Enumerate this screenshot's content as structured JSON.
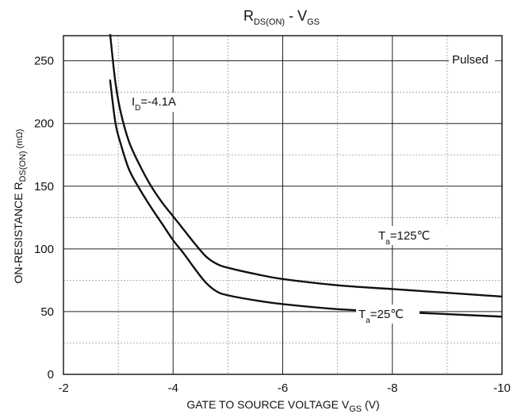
{
  "chart_data": {
    "type": "line",
    "title": {
      "main": "R",
      "main_sub": "DS(ON)",
      "sep": " - V",
      "sep_sub": "GS"
    },
    "xlabel": {
      "text": "GATE TO SOURCE VOLTAGE V",
      "sub": "GS",
      "unit": " (V)"
    },
    "ylabel": {
      "text": "ON-RESISTANCE R",
      "sub": "DS(ON)",
      "unit": " (mΩ)"
    },
    "xlim": [
      -2,
      -10
    ],
    "ylim": [
      0,
      270
    ],
    "x_ticks": [
      -2,
      -4,
      -6,
      -8,
      -10
    ],
    "y_ticks": [
      0,
      50,
      100,
      150,
      200,
      250
    ],
    "grid": true,
    "annotations": {
      "pulsed": "Pulsed",
      "id": {
        "main": "I",
        "sub": "D",
        "rest": "=-4.1A"
      },
      "t125": {
        "main": "T",
        "sub": "a",
        "rest": "=125℃"
      },
      "t25": {
        "main": "T",
        "sub": "a",
        "rest": "=25℃"
      }
    },
    "series": [
      {
        "name": "Ta=125℃",
        "x": [
          -2.85,
          -2.95,
          -3.05,
          -3.2,
          -3.4,
          -3.6,
          -3.8,
          -4.0,
          -4.2,
          -4.4,
          -4.6,
          -4.8,
          -5.0,
          -5.5,
          -6.0,
          -7.0,
          -8.0,
          -9.0,
          -10.0
        ],
        "y": [
          272,
          232,
          208,
          185,
          166,
          150,
          137,
          126,
          115,
          104,
          94,
          88,
          85,
          80,
          76,
          71,
          68,
          65,
          62
        ]
      },
      {
        "name": "Ta=25℃",
        "x": [
          -2.85,
          -2.95,
          -3.05,
          -3.2,
          -3.4,
          -3.6,
          -3.8,
          -4.0,
          -4.2,
          -4.4,
          -4.6,
          -4.8,
          -5.0,
          -5.5,
          -6.0,
          -7.0,
          -8.0,
          -9.0,
          -10.0
        ],
        "y": [
          235,
          200,
          183,
          163,
          147,
          133,
          120,
          107,
          96,
          84,
          73,
          66,
          63,
          59,
          56,
          52,
          50,
          48,
          46
        ]
      }
    ]
  }
}
